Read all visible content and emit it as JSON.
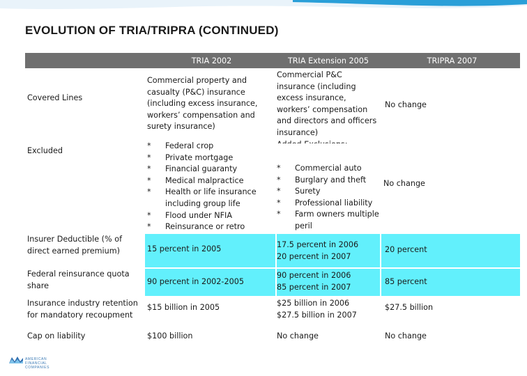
{
  "page": {
    "title": "EVOLUTION OF TRIA/TRIPRA (CONTINUED)"
  },
  "colors": {
    "header_bg": "#6f6f6f",
    "highlight_rows": "#62f0fc",
    "accent_band": "#2a9fd8"
  },
  "logo": {
    "text": "AMERICAN FINANCIAL COMPANIES"
  },
  "table": {
    "headers": [
      "",
      "TRIA 2002",
      "TRIA Extension 2005",
      "TRIPRA 2007"
    ],
    "rows": [
      {
        "label": "Covered Lines",
        "tria2002": "Commercial property and casualty (P&C) insurance (including excess insurance, workers’ compensation and surety insurance)",
        "ext2005_lines": [
          "Commercial P&C",
          "insurance (including",
          "excess insurance,",
          "workers’ compensation",
          "and directors and officers",
          "insurance)",
          "Added Exclusions:"
        ],
        "tripra2007": "No change"
      },
      {
        "label": "Excluded",
        "tria2002_items": [
          "Federal crop",
          "Private mortgage",
          "Financial guaranty",
          "Medical malpractice",
          "Health or life insurance including group life",
          "Flood under NFIA",
          "Reinsurance or retro"
        ],
        "ext2005_items": [
          "Commercial auto",
          "Burglary and theft",
          "Surety",
          "Professional liability",
          "Farm owners multiple peril"
        ],
        "tripra2007": "No change"
      },
      {
        "label": "Insurer Deductible (% of direct earned premium)",
        "tria2002": "15 percent in 2005",
        "ext2005_lines": [
          "17.5 percent in 2006",
          "20 percent in 2007"
        ],
        "tripra2007": "20 percent"
      },
      {
        "label": "Federal reinsurance quota share",
        "tria2002": "90 percent in 2002-2005",
        "ext2005_lines": [
          "90 percent in 2006",
          "85 percent in 2007"
        ],
        "tripra2007": "85 percent"
      },
      {
        "label": "Insurance industry retention for mandatory recoupment",
        "tria2002": "$15 billion in 2005",
        "ext2005_lines": [
          "$25 billion in 2006",
          "$27.5 billion in 2007"
        ],
        "tripra2007": "$27.5 billion"
      },
      {
        "label": "Cap on liability",
        "tria2002": "$100 billion",
        "ext2005": "No change",
        "tripra2007": "No change"
      }
    ],
    "bullet_char": "*"
  }
}
